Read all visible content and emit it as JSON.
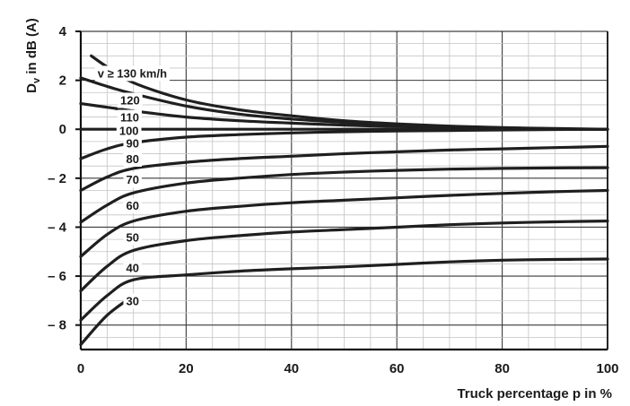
{
  "chart_data": {
    "type": "line",
    "ylabel_main": "D",
    "ylabel_sub": "v",
    "ylabel_rest": " in dB (A)",
    "xlabel": "Truck percentage p in %",
    "xlim": [
      0,
      100
    ],
    "ylim": [
      -9,
      4
    ],
    "x_ticks": [
      0,
      20,
      40,
      60,
      80,
      100
    ],
    "y_ticks": [
      {
        "value": 4,
        "label": "4"
      },
      {
        "value": 2,
        "label": "2"
      },
      {
        "value": 0,
        "label": "0"
      },
      {
        "value": -2,
        "label": "– 2"
      },
      {
        "value": -4,
        "label": "– 4"
      },
      {
        "value": -6,
        "label": "– 6"
      },
      {
        "value": -8,
        "label": "– 8"
      }
    ],
    "grid": true,
    "series": [
      {
        "name": "v ≥ 130 km/h",
        "x": [
          2,
          5,
          10,
          20,
          30,
          40,
          50,
          60,
          70,
          80,
          90,
          100
        ],
        "y": [
          3.0,
          2.55,
          1.9,
          1.2,
          0.8,
          0.55,
          0.35,
          0.22,
          0.13,
          0.07,
          0.03,
          0.0
        ]
      },
      {
        "name": "120",
        "x": [
          0,
          5,
          10,
          20,
          30,
          40,
          50,
          60,
          70,
          80,
          90,
          100
        ],
        "y": [
          2.1,
          1.75,
          1.45,
          0.95,
          0.62,
          0.42,
          0.28,
          0.18,
          0.11,
          0.06,
          0.02,
          0.0
        ]
      },
      {
        "name": "110",
        "x": [
          0,
          5,
          10,
          20,
          30,
          40,
          50,
          60,
          70,
          80,
          90,
          100
        ],
        "y": [
          1.05,
          0.9,
          0.75,
          0.5,
          0.35,
          0.25,
          0.17,
          0.11,
          0.07,
          0.04,
          0.01,
          0.0
        ]
      },
      {
        "name": "100",
        "x": [
          0,
          100
        ],
        "y": [
          0.0,
          0.0
        ]
      },
      {
        "name": "90",
        "x": [
          0,
          5,
          10,
          20,
          30,
          40,
          50,
          60,
          70,
          80,
          90,
          100
        ],
        "y": [
          -1.2,
          -0.8,
          -0.55,
          -0.32,
          -0.22,
          -0.15,
          -0.1,
          -0.07,
          -0.05,
          -0.03,
          -0.01,
          0.0
        ]
      },
      {
        "name": "80",
        "x": [
          0,
          5,
          10,
          20,
          30,
          40,
          50,
          60,
          70,
          80,
          90,
          100
        ],
        "y": [
          -2.5,
          -1.95,
          -1.6,
          -1.35,
          -1.2,
          -1.1,
          -1.0,
          -0.92,
          -0.85,
          -0.8,
          -0.75,
          -0.7
        ]
      },
      {
        "name": "70",
        "x": [
          0,
          5,
          10,
          20,
          30,
          40,
          50,
          60,
          70,
          80,
          90,
          100
        ],
        "y": [
          -3.8,
          -3.1,
          -2.6,
          -2.2,
          -2.0,
          -1.85,
          -1.75,
          -1.68,
          -1.63,
          -1.6,
          -1.58,
          -1.57
        ]
      },
      {
        "name": "60",
        "x": [
          0,
          5,
          10,
          20,
          30,
          40,
          50,
          60,
          70,
          80,
          90,
          100
        ],
        "y": [
          -5.2,
          -4.3,
          -3.75,
          -3.35,
          -3.15,
          -3.0,
          -2.9,
          -2.8,
          -2.7,
          -2.62,
          -2.55,
          -2.5
        ]
      },
      {
        "name": "50",
        "x": [
          0,
          5,
          10,
          20,
          30,
          40,
          50,
          60,
          70,
          80,
          90,
          100
        ],
        "y": [
          -6.6,
          -5.6,
          -4.95,
          -4.55,
          -4.35,
          -4.2,
          -4.1,
          -4.0,
          -3.9,
          -3.83,
          -3.78,
          -3.75
        ]
      },
      {
        "name": "40",
        "x": [
          0,
          5,
          10,
          20,
          30,
          40,
          50,
          60,
          70,
          80,
          90,
          100
        ],
        "y": [
          -7.8,
          -6.8,
          -6.15,
          -5.95,
          -5.8,
          -5.7,
          -5.62,
          -5.52,
          -5.42,
          -5.35,
          -5.32,
          -5.3
        ]
      },
      {
        "name": "30",
        "x": [
          0,
          5,
          10
        ],
        "y": [
          -8.8,
          -7.6,
          -6.8
        ]
      }
    ],
    "curve_labels": [
      {
        "text": "v ≥ 130 km/h",
        "x": 3.2,
        "y": 2.3
      },
      {
        "text": "120",
        "x": 7.5,
        "y": 1.2
      },
      {
        "text": "110",
        "x": 7.5,
        "y": 0.5
      },
      {
        "text": "100",
        "x": 7.3,
        "y": -0.05
      },
      {
        "text": "90",
        "x": 8.6,
        "y": -0.55
      },
      {
        "text": "80",
        "x": 8.6,
        "y": -1.2
      },
      {
        "text": "70",
        "x": 8.6,
        "y": -2.05
      },
      {
        "text": "60",
        "x": 8.6,
        "y": -3.1
      },
      {
        "text": "50",
        "x": 8.6,
        "y": -4.4
      },
      {
        "text": "40",
        "x": 8.6,
        "y": -5.65
      },
      {
        "text": "30",
        "x": 8.6,
        "y": -7.0
      }
    ]
  }
}
